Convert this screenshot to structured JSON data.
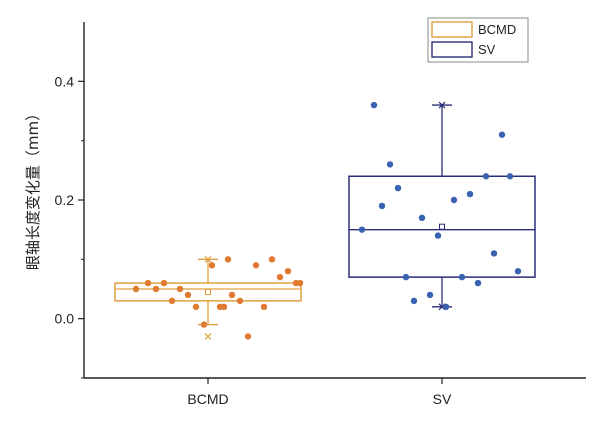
{
  "chart_data": {
    "type": "box",
    "title": "",
    "xlabel": "",
    "ylabel": "眼轴长度变化量（mm）",
    "ylim": [
      -0.1,
      0.5
    ],
    "yticks": [
      0.0,
      0.2,
      0.4
    ],
    "ytick_labels": [
      "0.0",
      "0.2",
      "0.4"
    ],
    "categories": [
      "BCMD",
      "SV"
    ],
    "legend": {
      "position": "top-right",
      "entries": [
        "BCMD",
        "SV"
      ]
    },
    "series": [
      {
        "name": "BCMD",
        "color": "#E0A040",
        "point_color": "#E07A30",
        "box": {
          "q1": 0.03,
          "median": 0.05,
          "q3": 0.06,
          "mean": 0.045,
          "whisker_low": -0.01,
          "whisker_high": 0.1,
          "min": -0.03,
          "max": 0.1
        },
        "points": [
          [
            -0.18,
            0.05
          ],
          [
            -0.15,
            0.06
          ],
          [
            -0.13,
            0.05
          ],
          [
            -0.11,
            0.06
          ],
          [
            -0.09,
            0.03
          ],
          [
            -0.07,
            0.05
          ],
          [
            -0.05,
            0.04
          ],
          [
            -0.03,
            0.02
          ],
          [
            -0.01,
            -0.01
          ],
          [
            0.01,
            0.09
          ],
          [
            0.03,
            0.02
          ],
          [
            0.04,
            0.02
          ],
          [
            0.05,
            0.1
          ],
          [
            0.06,
            0.04
          ],
          [
            0.08,
            0.03
          ],
          [
            0.1,
            -0.03
          ],
          [
            0.12,
            0.09
          ],
          [
            0.14,
            0.02
          ],
          [
            0.16,
            0.1
          ],
          [
            0.18,
            0.07
          ],
          [
            0.2,
            0.08
          ],
          [
            0.22,
            0.06
          ],
          [
            0.23,
            0.06
          ]
        ]
      },
      {
        "name": "SV",
        "color": "#2A2E7A",
        "point_color": "#3A62B0",
        "box": {
          "q1": 0.07,
          "median": 0.15,
          "q3": 0.24,
          "mean": 0.155,
          "whisker_low": 0.02,
          "whisker_high": 0.36,
          "min": 0.02,
          "max": 0.36
        },
        "points": [
          [
            -0.2,
            0.15
          ],
          [
            -0.17,
            0.36
          ],
          [
            -0.15,
            0.19
          ],
          [
            -0.13,
            0.26
          ],
          [
            -0.11,
            0.22
          ],
          [
            -0.09,
            0.07
          ],
          [
            -0.07,
            0.03
          ],
          [
            -0.05,
            0.17
          ],
          [
            -0.03,
            0.04
          ],
          [
            -0.01,
            0.14
          ],
          [
            0.01,
            0.02
          ],
          [
            0.03,
            0.2
          ],
          [
            0.05,
            0.07
          ],
          [
            0.07,
            0.21
          ],
          [
            0.09,
            0.06
          ],
          [
            0.11,
            0.24
          ],
          [
            0.13,
            0.11
          ],
          [
            0.15,
            0.31
          ],
          [
            0.17,
            0.24
          ],
          [
            0.19,
            0.08
          ]
        ]
      }
    ]
  }
}
